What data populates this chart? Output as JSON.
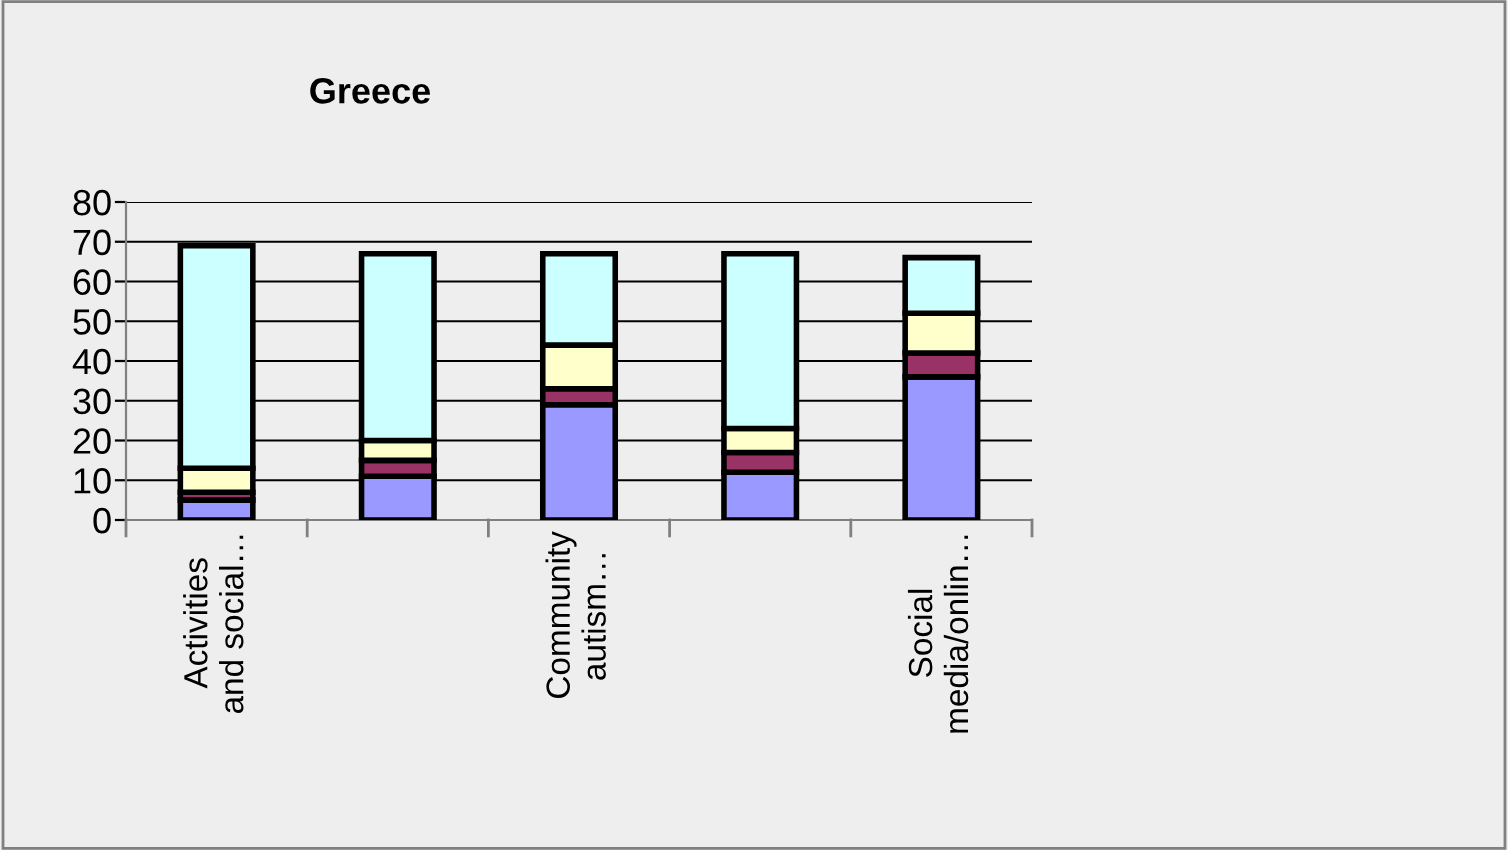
{
  "chart_data": {
    "type": "bar",
    "title": "Greece",
    "stacked": true,
    "categories": [
      "Activities\nand social…",
      null,
      "Community\nautism…",
      null,
      "Social\nmedia/onlin…"
    ],
    "series": [
      {
        "color": "#9999ff",
        "values": [
          5,
          11,
          29,
          12,
          36
        ]
      },
      {
        "color": "#993366",
        "values": [
          2,
          4,
          4,
          5,
          6
        ]
      },
      {
        "color": "#ffffcc",
        "values": [
          6,
          5,
          11,
          6,
          10
        ]
      },
      {
        "color": "#ccffff",
        "values": [
          56,
          47,
          23,
          44,
          14
        ]
      }
    ],
    "ylim": [
      0,
      80
    ],
    "yticks": [
      0,
      10,
      20,
      30,
      40,
      50,
      60,
      70,
      80
    ],
    "grid": "y",
    "legend": false
  }
}
